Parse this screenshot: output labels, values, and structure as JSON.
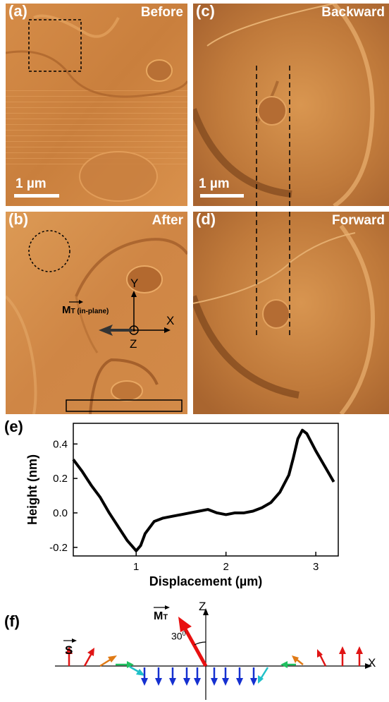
{
  "panels": {
    "a": {
      "label": "(a)",
      "title": "Before",
      "scale": "1 µm"
    },
    "b": {
      "label": "(b)",
      "title": "After",
      "vector": "M",
      "vector_sub": "T (in-plane)",
      "axis_x": "X",
      "axis_y": "Y",
      "axis_z": "Z"
    },
    "c": {
      "label": "(c)",
      "title": "Backward",
      "scale": "1 µm"
    },
    "d": {
      "label": "(d)",
      "title": "Forward"
    },
    "e": {
      "label": "(e)"
    },
    "f": {
      "label": "(f)",
      "vector_s": "S",
      "vector_m": "M",
      "vector_m_sub": "T",
      "angle": "30",
      "angle_sup": "0",
      "axis_z": "Z",
      "axis_x": "X"
    }
  },
  "colors": {
    "afm_light": "#e8a25e",
    "afm_mid": "#c97b3a",
    "afm_dark": "#8f4d1f"
  },
  "chart_data": {
    "type": "line",
    "xlabel": "Displacement (µm)",
    "ylabel": "Height (nm)",
    "xlim": [
      0.3,
      3.25
    ],
    "ylim": [
      -0.25,
      0.52
    ],
    "xticks": [
      "1",
      "2",
      "3"
    ],
    "xtick_values": [
      1,
      2,
      3
    ],
    "yticks": [
      "-0.2",
      "0.0",
      "0.2",
      "0.4"
    ],
    "ytick_values": [
      -0.2,
      0.0,
      0.2,
      0.4
    ],
    "series": [
      {
        "x": [
          0.3,
          0.4,
          0.5,
          0.6,
          0.7,
          0.8,
          0.9,
          0.95,
          1.0,
          1.05,
          1.1,
          1.2,
          1.3,
          1.4,
          1.5,
          1.6,
          1.7,
          1.8,
          1.9,
          2.0,
          2.1,
          2.2,
          2.3,
          2.4,
          2.5,
          2.6,
          2.7,
          2.75,
          2.8,
          2.85,
          2.9,
          3.0,
          3.1,
          3.2
        ],
        "y": [
          0.31,
          0.24,
          0.16,
          0.09,
          0.0,
          -0.08,
          -0.16,
          -0.19,
          -0.22,
          -0.19,
          -0.12,
          -0.05,
          -0.03,
          -0.02,
          -0.01,
          0.0,
          0.01,
          0.02,
          0.0,
          -0.01,
          0.0,
          0.0,
          0.01,
          0.03,
          0.06,
          0.12,
          0.22,
          0.32,
          0.43,
          0.48,
          0.46,
          0.36,
          0.27,
          0.18
        ]
      }
    ]
  }
}
